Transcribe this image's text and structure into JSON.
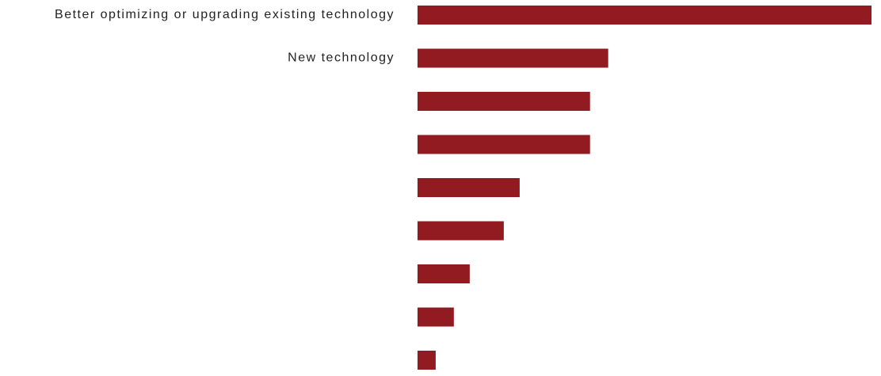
{
  "chart_data": {
    "type": "bar",
    "orientation": "horizontal",
    "categories": [
      "Better optimizing or upgrading existing technology",
      "New technology",
      "",
      "",
      "",
      "",
      "",
      "",
      ""
    ],
    "values": [
      100,
      42,
      38,
      38,
      22.5,
      19,
      11.5,
      8,
      4
    ],
    "xlim": [
      0,
      100
    ],
    "grid": false,
    "legend": "none",
    "colors": {
      "bar": "#921B22"
    }
  }
}
